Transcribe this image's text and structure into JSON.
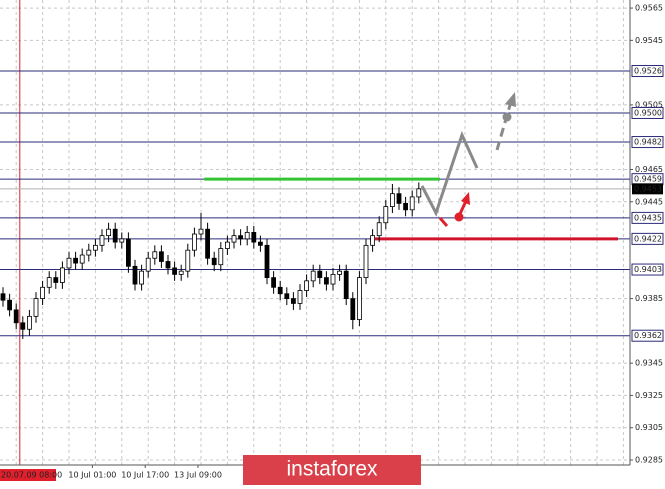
{
  "chart_data": {
    "type": "candlestick",
    "categories": [
      null,
      null,
      null,
      "20.07.09 08:00",
      null,
      null,
      null,
      null,
      null,
      null,
      null,
      null,
      null,
      null,
      "10 Jul 01:00",
      null,
      null,
      null,
      null,
      null,
      null,
      null,
      "10 Jul 17:00",
      null,
      null,
      null,
      null,
      null,
      null,
      null,
      "13 Jul 09:00",
      null,
      null,
      null,
      null,
      null,
      null,
      null,
      null,
      null,
      null,
      null,
      null,
      null,
      null,
      null,
      null,
      null,
      null,
      null,
      null,
      null,
      null,
      null,
      null,
      null,
      null,
      null,
      null,
      null,
      null,
      null,
      null,
      null
    ],
    "highlight_category": 3,
    "open": [
      0.9388,
      0.9384,
      0.9378,
      0.937,
      0.9366,
      0.9374,
      0.9385,
      0.9392,
      0.9398,
      0.9395,
      0.9404,
      0.941,
      0.9407,
      0.9412,
      0.9415,
      0.9418,
      0.9424,
      0.9428,
      0.942,
      0.9422,
      0.9405,
      0.9394,
      0.9402,
      0.941,
      0.9414,
      0.9408,
      0.9404,
      0.94,
      0.9402,
      0.9415,
      0.9425,
      0.9428,
      0.941,
      0.9406,
      0.9416,
      0.942,
      0.9424,
      0.9422,
      0.9426,
      0.942,
      0.9418,
      0.9398,
      0.9392,
      0.9388,
      0.9385,
      0.9382,
      0.939,
      0.9396,
      0.9402,
      0.9398,
      0.9394,
      0.94,
      0.9402,
      0.9385,
      0.9372,
      0.9398,
      0.9418,
      0.9424,
      0.9432,
      0.9442,
      0.945,
      0.9444,
      0.944,
      0.9448
    ],
    "high": [
      0.9392,
      0.9388,
      0.9382,
      0.9374,
      0.9378,
      0.9389,
      0.9396,
      0.9402,
      0.9402,
      0.9408,
      0.9414,
      0.9414,
      0.9416,
      0.9419,
      0.9422,
      0.9428,
      0.9432,
      0.9432,
      0.9426,
      0.9426,
      0.9409,
      0.9406,
      0.9414,
      0.9418,
      0.9418,
      0.9412,
      0.9408,
      0.9406,
      0.9419,
      0.9429,
      0.9438,
      0.9432,
      0.9414,
      0.942,
      0.9424,
      0.9428,
      0.9428,
      0.943,
      0.943,
      0.9424,
      0.9422,
      0.9402,
      0.9396,
      0.9392,
      0.9389,
      0.9394,
      0.94,
      0.9406,
      0.9406,
      0.9402,
      0.9404,
      0.9406,
      0.9406,
      0.9389,
      0.9402,
      0.9422,
      0.9428,
      0.9436,
      0.9446,
      0.9456,
      0.9454,
      0.9448,
      0.9452,
      0.9457
    ],
    "low": [
      0.938,
      0.9374,
      0.9366,
      0.936,
      0.9362,
      0.937,
      0.9381,
      0.9388,
      0.9391,
      0.9391,
      0.94,
      0.9403,
      0.9403,
      0.9408,
      0.9411,
      0.9414,
      0.942,
      0.9416,
      0.9416,
      0.9401,
      0.939,
      0.939,
      0.9398,
      0.9406,
      0.9404,
      0.94,
      0.9396,
      0.9396,
      0.9398,
      0.9411,
      0.9421,
      0.9406,
      0.9402,
      0.9402,
      0.9412,
      0.9416,
      0.9418,
      0.9418,
      0.9416,
      0.9414,
      0.9394,
      0.9388,
      0.9384,
      0.9381,
      0.9378,
      0.9378,
      0.9386,
      0.9392,
      0.9394,
      0.939,
      0.939,
      0.9396,
      0.9381,
      0.9366,
      0.9368,
      0.9394,
      0.9414,
      0.942,
      0.9428,
      0.9438,
      0.944,
      0.9436,
      0.9436,
      0.9444
    ],
    "close": [
      0.9384,
      0.9378,
      0.937,
      0.9366,
      0.9374,
      0.9385,
      0.9392,
      0.9398,
      0.9395,
      0.9404,
      0.941,
      0.9407,
      0.9412,
      0.9415,
      0.9418,
      0.9424,
      0.9428,
      0.942,
      0.9422,
      0.9405,
      0.9394,
      0.9402,
      0.941,
      0.9414,
      0.9408,
      0.9404,
      0.94,
      0.9402,
      0.9415,
      0.9425,
      0.9428,
      0.941,
      0.9406,
      0.9416,
      0.942,
      0.9424,
      0.9422,
      0.9426,
      0.942,
      0.9418,
      0.9398,
      0.9392,
      0.9388,
      0.9385,
      0.9382,
      0.939,
      0.9396,
      0.9402,
      0.9398,
      0.9394,
      0.94,
      0.9402,
      0.9385,
      0.9372,
      0.9398,
      0.9418,
      0.9424,
      0.9432,
      0.9442,
      0.945,
      0.9444,
      0.944,
      0.9448,
      0.9453
    ],
    "ylim": [
      0.92819,
      0.957
    ],
    "yticks": [
      0.9565,
      0.9545,
      0.9505,
      0.9465,
      0.9445,
      0.9385,
      0.9345,
      0.9325,
      0.9305,
      0.9285
    ],
    "grid": true,
    "levels": [
      0.9526,
      {
        "value": 0.95,
        "label": "0.9500"
      },
      0.9482,
      0.9459,
      0.9435,
      0.9422,
      0.9403,
      0.9362
    ],
    "level_color": "#2b2b7a",
    "resistance": {
      "value": 0.9459,
      "color": "#33c433"
    },
    "support": {
      "value": 0.9422,
      "color": "#d0142c"
    },
    "current_price": 0.9453,
    "watermark": "instaforex"
  }
}
